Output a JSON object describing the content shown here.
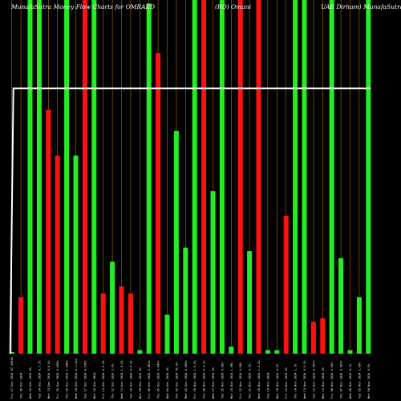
{
  "chart_data": {
    "type": "bar",
    "title_segments": [
      "MunafaSutra Money Flow Charts for OMRAED",
      "(RO) Omani",
      "UAE Dirham) MunafaSutra.com"
    ],
    "categories": [
      "Fri 27 Dec 2024 97,1960%",
      "Thu 26 Dec 2024",
      "Wed 25 Dec 2024 0%",
      "Tue 24 Dec 2024 0.7.5%",
      "Mon 23 Dec 2024 9,0.0%",
      "Fri 20 Dec 2024 0.000%",
      "Thu 19 Dec 2024 1.046%",
      "Wed 18 Dec 2024 0.1.15%",
      "Tue 17 Dec 2024 4.010%",
      "Mon 16 Dec 2024",
      "Fri 13 Dec 2024 4.0.0%",
      "Thu 12 Dec 2024 2.0%",
      "Wed 11 Dec 2024 1.0.0%",
      "Tue 10 Dec 2024 0.0.0%",
      "Mon 09 Dec 2024 0%",
      "Fri 06 Dec 2024 0.001%",
      "Thu 05 Dec 2024 3.041%",
      "Wed 04 Dec 2024 0%",
      "Tue 03 Dec 2024 01.0%",
      "Mon 02 Dec 2024 0.005%",
      "Fri 29 Nov 2024 1.0.0%",
      "Thu 28 Nov 2024 6.0.1%",
      "Wed 27 Nov 2024 0%",
      "Tue 26 Nov 2024 0.00%",
      "Mon 25 Nov 2024 1.09%",
      "Fri 22 Nov 2024 0.09%",
      "Thu 21 Nov 2024 0.5%",
      "Wed 20 Nov 2024 1.0.0%",
      "Tue 19 Nov 2024",
      "Mon 18 Nov 2024 0.0%",
      "Fri 15 Nov 2024 0%",
      "Thu 14 Nov 2024 1.1%",
      "Wed 13 Nov 2024 0.0.5%",
      "Tue 12 Nov 2024 0.007%",
      "Mon 11 Nov 2024 0%",
      "Fri 08 Nov 2024 0.00%",
      "Thu 07 Nov 2024 0.001%",
      "Wed 06 Nov 2024 0.1%",
      "Tue 05 Nov 2024 1.00%",
      "Mon 04 Nov 2024 0.0%"
    ],
    "values": [
      0,
      0.16,
      1.0,
      1.0,
      0.69,
      0.56,
      1.0,
      0.56,
      1.0,
      1.0,
      0.17,
      0.26,
      0.19,
      0.17,
      0.01,
      0.99,
      0.85,
      0.11,
      0.63,
      0.3,
      1.0,
      1.0,
      0.46,
      1.0,
      0.02,
      1.0,
      0.29,
      1.0,
      0.01,
      0.01,
      0.39,
      1.0,
      1.0,
      0.09,
      0.1,
      1.0,
      0.27,
      0.01,
      0.16,
      1.0
    ],
    "colors": [
      "green",
      "red",
      "green",
      "green",
      "red",
      "red",
      "green",
      "green",
      "red",
      "green",
      "red",
      "green",
      "red",
      "red",
      "green",
      "green",
      "red",
      "green",
      "green",
      "green",
      "green",
      "red",
      "green",
      "green",
      "green",
      "red",
      "green",
      "red",
      "green",
      "green",
      "red",
      "green",
      "green",
      "red",
      "red",
      "green",
      "green",
      "green",
      "green",
      "green"
    ],
    "line_level": 0.75,
    "ylim": [
      0,
      1
    ],
    "palette": {
      "green": "#22ee22",
      "red": "#ff1111",
      "line": "#ffffff",
      "grid": "#cc8800",
      "background": "#000000"
    },
    "grid": true
  }
}
